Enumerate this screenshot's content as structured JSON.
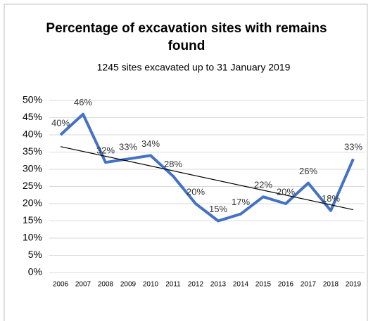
{
  "chart_data": {
    "type": "line",
    "title": "Percentage of excavation sites with remains found",
    "subtitle": "1245 sites excavated up to 31 January 2019",
    "categories": [
      "2006",
      "2007",
      "2008",
      "2009",
      "2010",
      "2011",
      "2012",
      "2013",
      "2014",
      "2015",
      "2016",
      "2017",
      "2018",
      "2019"
    ],
    "values": [
      40,
      46,
      32,
      33,
      34,
      28,
      20,
      15,
      17,
      22,
      20,
      26,
      18,
      33
    ],
    "value_labels": [
      "40%",
      "46%",
      "32%",
      "33%",
      "34%",
      "28%",
      "20%",
      "15%",
      "17%",
      "22%",
      "20%",
      "26%",
      "18%",
      "33%"
    ],
    "color": "#4472c4",
    "trendline": true,
    "ylim": [
      0,
      50
    ],
    "yticks": [
      {
        "value": 0,
        "label": "0%"
      },
      {
        "value": 5,
        "label": "5%"
      },
      {
        "value": 10,
        "label": "10%"
      },
      {
        "value": 15,
        "label": "15%"
      },
      {
        "value": 20,
        "label": "20%"
      },
      {
        "value": 25,
        "label": "25%"
      },
      {
        "value": 30,
        "label": "30%"
      },
      {
        "value": 35,
        "label": "35%"
      },
      {
        "value": 40,
        "label": "40%"
      },
      {
        "value": 45,
        "label": "45%"
      },
      {
        "value": 50,
        "label": "50%"
      }
    ],
    "grid": true
  }
}
